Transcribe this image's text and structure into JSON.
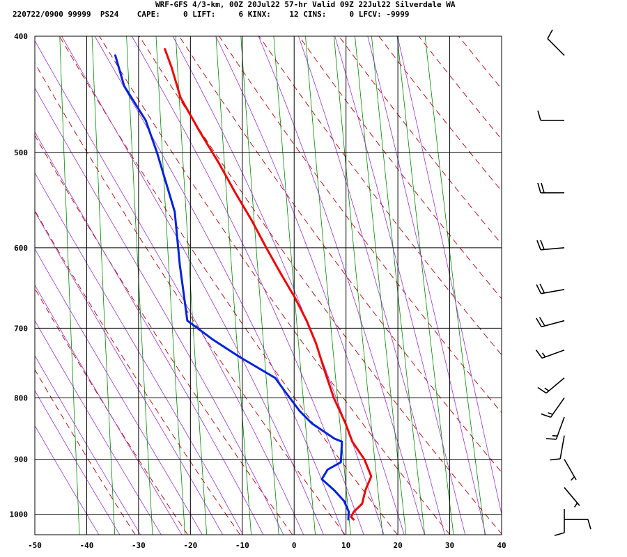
{
  "header": {
    "line1": "WRF-GFS 4/3-km, 00Z 20Jul22 57-hr Valid 09Z 22Jul22 Silverdale WA",
    "line2": "220722/0900 99999  PS24    CAPE:     0 LIFT:     6 KINX:    12 CINS:     0 LFCV: -9999"
  },
  "chart_data": {
    "type": "line",
    "title": "",
    "xlabel": "",
    "ylabel": "",
    "x_axis": {
      "min": -50,
      "max": 40,
      "ticks": [
        -50,
        -40,
        -30,
        -20,
        -10,
        0,
        10,
        20,
        30,
        40
      ]
    },
    "y_axis": {
      "scale": "log",
      "min": 1040,
      "max": 400,
      "ticks": [
        400,
        500,
        600,
        700,
        800,
        900,
        1000
      ]
    },
    "grid": true,
    "skew_per_log_decade": 88,
    "colors": {
      "temperature": "#ee0000",
      "dewpoint": "#0022dd",
      "dry_adiabat": "#aa0000",
      "moist_adiabat": "#9933cc",
      "mixing_ratio": "#008800",
      "grid": "#000000"
    },
    "series": [
      {
        "key": "temperature",
        "points": [
          [
            1010,
            11.5
          ],
          [
            1005,
            11.0
          ],
          [
            995,
            11.5
          ],
          [
            980,
            13
          ],
          [
            955,
            13.5
          ],
          [
            930,
            14.5
          ],
          [
            900,
            13
          ],
          [
            870,
            10.5
          ],
          [
            840,
            9
          ],
          [
            800,
            6.5
          ],
          [
            760,
            4.5
          ],
          [
            720,
            2.5
          ],
          [
            690,
            0.5
          ],
          [
            660,
            -2
          ],
          [
            630,
            -5
          ],
          [
            600,
            -8
          ],
          [
            570,
            -11
          ],
          [
            540,
            -14.5
          ],
          [
            510,
            -18
          ],
          [
            480,
            -22
          ],
          [
            450,
            -26
          ],
          [
            425,
            -28
          ],
          [
            410,
            -29.5
          ]
        ]
      },
      {
        "key": "dewpoint",
        "points": [
          [
            1010,
            10.5
          ],
          [
            1005,
            10.5
          ],
          [
            995,
            10.5
          ],
          [
            975,
            9.5
          ],
          [
            955,
            7.5
          ],
          [
            935,
            5
          ],
          [
            918,
            6
          ],
          [
            905,
            8.5
          ],
          [
            870,
            8.5
          ],
          [
            865,
            7
          ],
          [
            840,
            2.5
          ],
          [
            820,
            0
          ],
          [
            790,
            -3
          ],
          [
            770,
            -5
          ],
          [
            740,
            -12
          ],
          [
            715,
            -17.5
          ],
          [
            690,
            -22.5
          ],
          [
            620,
            -24.5
          ],
          [
            560,
            -26
          ],
          [
            500,
            -30
          ],
          [
            470,
            -32.5
          ],
          [
            440,
            -37
          ],
          [
            415,
            -39
          ]
        ]
      }
    ],
    "wind_barbs": [
      {
        "p": 415,
        "dir_deg": 315,
        "kt": 10
      },
      {
        "p": 470,
        "dir_deg": 270,
        "kt": 10
      },
      {
        "p": 540,
        "dir_deg": 270,
        "kt": 20
      },
      {
        "p": 600,
        "dir_deg": 265,
        "kt": 20
      },
      {
        "p": 650,
        "dir_deg": 260,
        "kt": 20
      },
      {
        "p": 690,
        "dir_deg": 255,
        "kt": 20
      },
      {
        "p": 730,
        "dir_deg": 250,
        "kt": 15
      },
      {
        "p": 770,
        "dir_deg": 230,
        "kt": 15
      },
      {
        "p": 800,
        "dir_deg": 215,
        "kt": 15
      },
      {
        "p": 830,
        "dir_deg": 200,
        "kt": 15
      },
      {
        "p": 860,
        "dir_deg": 190,
        "kt": 10
      },
      {
        "p": 900,
        "dir_deg": 150,
        "kt": 5
      },
      {
        "p": 950,
        "dir_deg": 140,
        "kt": 5
      },
      {
        "p": 990,
        "dir_deg": 180,
        "kt": 10
      },
      {
        "p": 1010,
        "dir_deg": 90,
        "kt": 10
      }
    ]
  }
}
